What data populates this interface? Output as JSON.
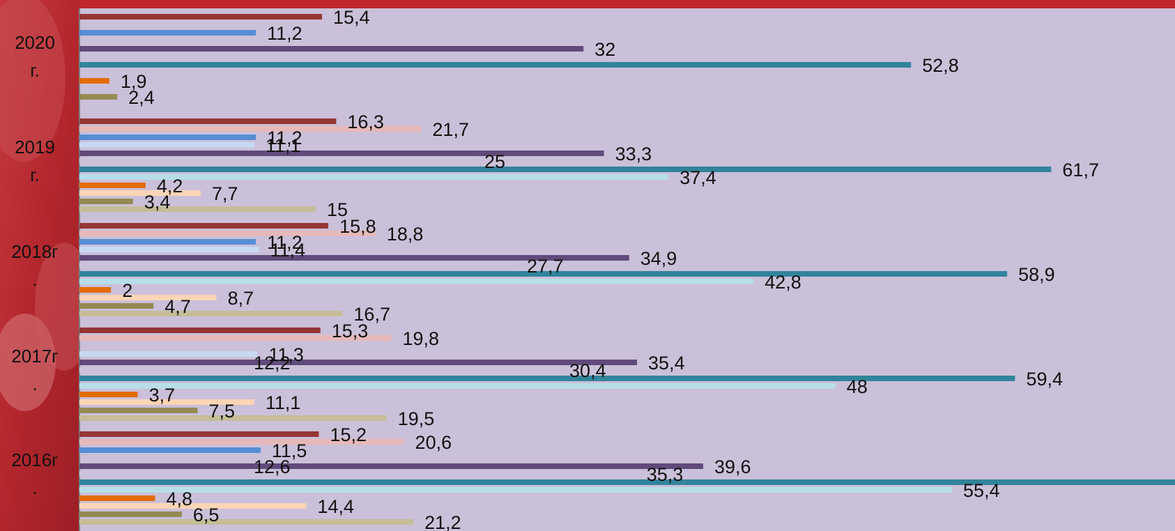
{
  "chart_data": {
    "type": "bar",
    "orientation": "horizontal",
    "title": "",
    "xlabel": "",
    "ylabel": "",
    "xlim": [
      0,
      72
    ],
    "grid": false,
    "legend": "none",
    "group_labels": [
      [
        "2020",
        "г."
      ],
      [
        "2019",
        "г."
      ],
      [
        "2018г",
        "."
      ],
      [
        "2017г",
        "."
      ],
      [
        "2016г",
        "."
      ]
    ],
    "series": [
      {
        "color": "#943634",
        "values": [
          15.4,
          16.3,
          15.8,
          15.3,
          15.2
        ]
      },
      {
        "color": "#e6b9b8",
        "values": [
          null,
          21.7,
          18.8,
          19.8,
          20.6
        ]
      },
      {
        "color": "#558ed5",
        "values": [
          11.2,
          11.2,
          11.2,
          null,
          11.5
        ]
      },
      {
        "color": "#c6d9f1",
        "values": [
          null,
          11.1,
          11.4,
          11.3,
          null
        ]
      },
      {
        "color": "#604a7b",
        "values": [
          32,
          33.3,
          34.9,
          35.4,
          39.6
        ]
      },
      {
        "color": "#ccc1da",
        "values": [
          null,
          25,
          27.7,
          30.4,
          35.3
        ]
      },
      {
        "color": "#31849b",
        "values": [
          52.8,
          61.7,
          58.9,
          59.4,
          71.1
        ]
      },
      {
        "color": "#b7dee8",
        "values": [
          null,
          37.4,
          42.8,
          48,
          55.4
        ]
      },
      {
        "color": "#e36c09",
        "values": [
          1.9,
          4.2,
          2,
          3.7,
          4.8
        ]
      },
      {
        "color": "#fcd5b5",
        "values": [
          null,
          7.7,
          8.7,
          11.1,
          14.4
        ]
      },
      {
        "color": "#948a54",
        "values": [
          2.4,
          3.4,
          4.7,
          7.5,
          6.5
        ]
      },
      {
        "color": "#c4bd97",
        "values": [
          null,
          15,
          16.7,
          19.5,
          21.2
        ]
      }
    ],
    "extra_labels": [
      {
        "group": 3,
        "row": 2,
        "text": "12,2"
      },
      {
        "group": 4,
        "row": 2,
        "text": "12,6"
      }
    ]
  },
  "colors": {
    "plot_background": "#cbc0d9",
    "sidebar_red": "#b3262d",
    "top_band": "#c0272d",
    "axis_line": "#7f7f7f"
  }
}
